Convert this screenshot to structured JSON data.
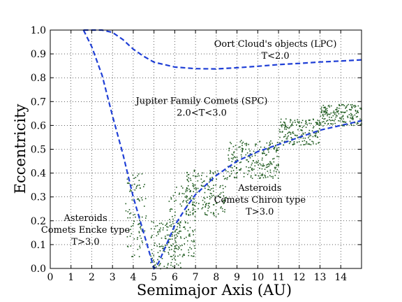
{
  "chart_data": {
    "type": "scatter",
    "xlabel": "Semimajor Axis (AU)",
    "ylabel": "Eccentricity",
    "xlim": [
      0,
      15
    ],
    "ylim": [
      0,
      1.0
    ],
    "x_ticks": [
      "0",
      "1",
      "2",
      "3",
      "4",
      "5",
      "6",
      "7",
      "8",
      "9",
      "10",
      "11",
      "12",
      "13",
      "14"
    ],
    "y_ticks": [
      "0.0",
      "0.1",
      "0.2",
      "0.3",
      "0.4",
      "0.5",
      "0.6",
      "0.7",
      "0.8",
      "0.9",
      "1.0"
    ],
    "grid": true,
    "annotations": [
      {
        "lines": [
          "Oort Cloud's objects (LPC)",
          "T<2.0"
        ],
        "x": 10.85,
        "y": 0.93
      },
      {
        "lines": [
          "Jupiter Family Comets (SPC)",
          "2.0<T<3.0"
        ],
        "x": 7.3,
        "y": 0.69
      },
      {
        "lines": [
          "Asteroids",
          "Comets Chiron type",
          "T>3.0"
        ],
        "x": 10.1,
        "y": 0.325
      },
      {
        "lines": [
          "Asteroids",
          "Comets Encke type",
          "T>3.0"
        ],
        "x": 1.7,
        "y": 0.2
      }
    ],
    "series": [
      {
        "type": "line",
        "style": "dashed",
        "color": "#1f3fd6",
        "x": [
          1.6,
          2.0,
          2.5,
          3.0,
          3.5,
          4.0,
          4.5,
          4.8,
          5.0,
          5.2,
          5.5,
          6.0,
          6.5,
          7.0,
          7.5,
          8.0,
          9.0,
          10.0,
          11.0,
          12.0,
          13.0,
          14.0,
          15.0
        ],
        "y": [
          1.0,
          0.93,
          0.81,
          0.64,
          0.48,
          0.3,
          0.15,
          0.06,
          0.0,
          0.02,
          0.08,
          0.18,
          0.25,
          0.31,
          0.35,
          0.39,
          0.45,
          0.49,
          0.52,
          0.55,
          0.58,
          0.6,
          0.62
        ]
      },
      {
        "type": "line",
        "style": "dashed",
        "color": "#1f3fd6",
        "x": [
          1.6,
          2.0,
          2.5,
          3.0,
          3.5,
          4.0,
          4.5,
          5.0,
          5.5,
          6.0,
          7.0,
          8.0,
          9.0,
          10.0,
          11.0,
          12.0,
          13.0,
          14.0,
          15.0
        ],
        "y": [
          1.0,
          1.0,
          1.0,
          0.99,
          0.96,
          0.92,
          0.89,
          0.865,
          0.855,
          0.845,
          0.838,
          0.837,
          0.842,
          0.848,
          0.855,
          0.86,
          0.866,
          0.87,
          0.875
        ]
      },
      {
        "type": "scatter",
        "color": "#1e5a1e",
        "description_bands": [
          {
            "x": [
              3.6,
              4.6
            ],
            "y": [
              0.05,
              0.4
            ]
          },
          {
            "x": [
              4.8,
              6.3
            ],
            "y": [
              0.0,
              0.2
            ]
          },
          {
            "x": [
              5.6,
              7.0
            ],
            "y": [
              0.05,
              0.35
            ]
          },
          {
            "x": [
              6.5,
              8.5
            ],
            "y": [
              0.22,
              0.42
            ]
          },
          {
            "x": [
              8.5,
              11.0
            ],
            "y": [
              0.38,
              0.54
            ]
          },
          {
            "x": [
              11.0,
              13.0
            ],
            "y": [
              0.52,
              0.63
            ]
          },
          {
            "x": [
              13.0,
              15.0
            ],
            "y": [
              0.6,
              0.69
            ]
          }
        ]
      }
    ]
  }
}
